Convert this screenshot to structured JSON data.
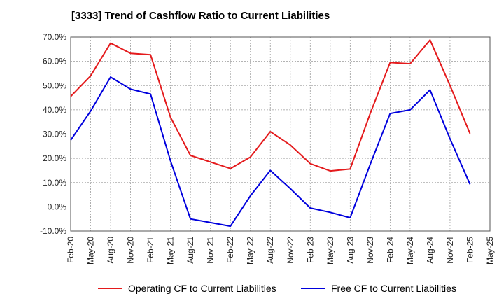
{
  "chart_data": {
    "type": "line",
    "title": "[3333]  Trend of Cashflow Ratio to Current Liabilities",
    "x_labels": [
      "Feb-20",
      "May-20",
      "Aug-20",
      "Nov-20",
      "Feb-21",
      "May-21",
      "Aug-21",
      "Nov-21",
      "Feb-22",
      "May-22",
      "Aug-22",
      "Nov-22",
      "Feb-23",
      "May-23",
      "Aug-23",
      "Nov-23",
      "Feb-24",
      "May-24",
      "Aug-24",
      "Nov-24",
      "Feb-25",
      "May-25"
    ],
    "y_ticks": [
      "70.0%",
      "60.0%",
      "50.0%",
      "40.0%",
      "30.0%",
      "20.0%",
      "10.0%",
      "0.0%",
      "-10.0%"
    ],
    "ylim": [
      -10,
      70
    ],
    "grid": true,
    "legend_position": "bottom",
    "series": [
      {
        "name": "Operating CF to Current Liabilities",
        "color": "#e41a1c",
        "points": [
          [
            0,
            45.5
          ],
          [
            1,
            54
          ],
          [
            2,
            67.5
          ],
          [
            3,
            63.3
          ],
          [
            4,
            62.7
          ],
          [
            5,
            37
          ],
          [
            6,
            21.2
          ],
          [
            7,
            18.5
          ],
          [
            8,
            15.8
          ],
          [
            9,
            20.5
          ],
          [
            10,
            31
          ],
          [
            11,
            25.5
          ],
          [
            12,
            17.8
          ],
          [
            13,
            14.8
          ],
          [
            14,
            15.6
          ],
          [
            15,
            38.5
          ],
          [
            16,
            59.5
          ],
          [
            17,
            59
          ],
          [
            18,
            68.8
          ],
          [
            19,
            50
          ],
          [
            20,
            30.2
          ]
        ]
      },
      {
        "name": "Free CF to Current Liabilities",
        "color": "#0000dd",
        "points": [
          [
            0,
            27.5
          ],
          [
            1,
            39.5
          ],
          [
            2,
            53.5
          ],
          [
            3,
            48.5
          ],
          [
            4,
            46.5
          ],
          [
            5,
            19
          ],
          [
            6,
            -5
          ],
          [
            7,
            -6.5
          ],
          [
            8,
            -8
          ],
          [
            9,
            4.5
          ],
          [
            10,
            15
          ],
          [
            11,
            7.5
          ],
          [
            12,
            -0.5
          ],
          [
            13,
            -2.3
          ],
          [
            14,
            -4.5
          ],
          [
            15,
            17.5
          ],
          [
            16,
            38.5
          ],
          [
            17,
            40
          ],
          [
            18,
            48.2
          ],
          [
            19,
            28
          ],
          [
            20,
            9.3
          ]
        ]
      }
    ]
  }
}
